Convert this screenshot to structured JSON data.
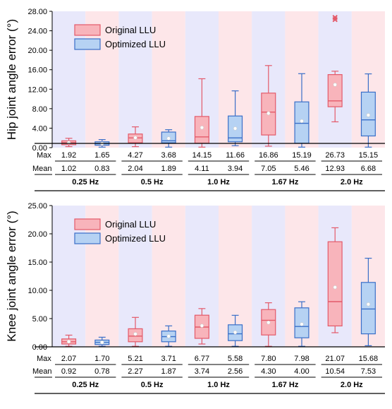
{
  "chart_data": [
    {
      "type": "box",
      "ylabel": "Hip joint angle error (°)",
      "ylim": [
        0,
        28
      ],
      "yticks": [
        "0.00",
        "4.00",
        "8.00",
        "12.00",
        "16.00",
        "20.00",
        "24.00",
        "28.00"
      ],
      "legend": {
        "position": "top-left",
        "entries": [
          "Original LLU",
          "Optimized LLU"
        ]
      },
      "frequencies": [
        "0.25 Hz",
        "0.5 Hz",
        "1.0 Hz",
        "1.67 Hz",
        "2.0 Hz"
      ],
      "table": {
        "row_labels": [
          "Max",
          "Mean"
        ],
        "max": [
          "1.92",
          "1.65",
          "4.27",
          "3.68",
          "14.15",
          "11.66",
          "16.86",
          "15.19",
          "26.73",
          "15.15"
        ],
        "mean": [
          "1.02",
          "0.83",
          "2.04",
          "1.89",
          "4.11",
          "3.94",
          "7.05",
          "5.46",
          "12.93",
          "6.68"
        ]
      },
      "series": [
        {
          "name": "Original LLU",
          "color": "#e35a6a",
          "fill": "#f8b4bb",
          "boxes": [
            {
              "min": 0.2,
              "q1": 0.6,
              "median": 1.0,
              "q3": 1.4,
              "max": 1.92,
              "mean": 1.02
            },
            {
              "min": 0.2,
              "q1": 1.0,
              "median": 2.0,
              "q3": 2.8,
              "max": 4.27,
              "mean": 2.04
            },
            {
              "min": 0.1,
              "q1": 0.9,
              "median": 2.2,
              "q3": 6.4,
              "max": 14.15,
              "mean": 4.11
            },
            {
              "min": 0.3,
              "q1": 2.6,
              "median": 7.3,
              "q3": 11.2,
              "max": 16.86,
              "mean": 7.05
            },
            {
              "min": 5.3,
              "q1": 8.4,
              "median": 9.6,
              "q3": 15.0,
              "max": 15.7,
              "mean": 12.93,
              "outliers": [
                26.3,
                26.73
              ]
            }
          ]
        },
        {
          "name": "Optimized LLU",
          "color": "#3a6fc8",
          "fill": "#b6d2f3",
          "boxes": [
            {
              "min": 0.1,
              "q1": 0.5,
              "median": 0.8,
              "q3": 1.2,
              "max": 1.65,
              "mean": 0.83
            },
            {
              "min": 0.1,
              "q1": 1.0,
              "median": 1.4,
              "q3": 3.2,
              "max": 3.68,
              "mean": 1.89
            },
            {
              "min": 0.4,
              "q1": 1.2,
              "median": 2.0,
              "q3": 6.5,
              "max": 11.66,
              "mean": 3.94
            },
            {
              "min": 0.1,
              "q1": 0.9,
              "median": 5.0,
              "q3": 9.4,
              "max": 15.19,
              "mean": 5.46
            },
            {
              "min": 0.1,
              "q1": 2.4,
              "median": 5.7,
              "q3": 11.4,
              "max": 15.15,
              "mean": 6.68
            }
          ]
        }
      ]
    },
    {
      "type": "box",
      "ylabel": "Knee joint angle error (°)",
      "ylim": [
        0,
        25
      ],
      "yticks": [
        "0.00",
        "5.00",
        "10.00",
        "15.00",
        "20.00",
        "25.00"
      ],
      "legend": {
        "position": "top-left",
        "entries": [
          "Original LLU",
          "Optimized LLU"
        ]
      },
      "frequencies": [
        "0.25 Hz",
        "0.5 Hz",
        "1.0 Hz",
        "1.67 Hz",
        "2.0 Hz"
      ],
      "table": {
        "row_labels": [
          "Max",
          "Mean"
        ],
        "max": [
          "2.07",
          "1.70",
          "5.21",
          "3.71",
          "6.77",
          "5.58",
          "7.80",
          "7.98",
          "21.07",
          "15.68"
        ],
        "mean": [
          "0.92",
          "0.78",
          "2.27",
          "1.87",
          "3.74",
          "2.56",
          "4.30",
          "4.00",
          "10.54",
          "7.53"
        ]
      },
      "series": [
        {
          "name": "Original LLU",
          "color": "#e35a6a",
          "fill": "#f8b4bb",
          "boxes": [
            {
              "min": 0.1,
              "q1": 0.5,
              "median": 0.9,
              "q3": 1.4,
              "max": 2.07,
              "mean": 0.92
            },
            {
              "min": 0.1,
              "q1": 0.9,
              "median": 1.9,
              "q3": 3.2,
              "max": 5.21,
              "mean": 2.27
            },
            {
              "min": 0.5,
              "q1": 1.5,
              "median": 3.5,
              "q3": 5.6,
              "max": 6.77,
              "mean": 3.74
            },
            {
              "min": 0.1,
              "q1": 2.1,
              "median": 4.7,
              "q3": 6.6,
              "max": 7.8,
              "mean": 4.3
            },
            {
              "min": 2.5,
              "q1": 3.7,
              "median": 8.0,
              "q3": 18.6,
              "max": 21.07,
              "mean": 10.54
            }
          ]
        },
        {
          "name": "Optimized LLU",
          "color": "#3a6fc8",
          "fill": "#b6d2f3",
          "boxes": [
            {
              "min": 0.1,
              "q1": 0.4,
              "median": 0.8,
              "q3": 1.2,
              "max": 1.7,
              "mean": 0.78
            },
            {
              "min": 0.1,
              "q1": 0.9,
              "median": 1.8,
              "q3": 2.8,
              "max": 3.71,
              "mean": 1.87
            },
            {
              "min": 0.1,
              "q1": 1.1,
              "median": 2.3,
              "q3": 3.9,
              "max": 5.58,
              "mean": 2.56
            },
            {
              "min": 0.1,
              "q1": 1.6,
              "median": 3.6,
              "q3": 6.9,
              "max": 7.98,
              "mean": 4.0
            },
            {
              "min": 0.2,
              "q1": 2.3,
              "median": 6.7,
              "q3": 11.4,
              "max": 15.68,
              "mean": 7.53
            }
          ]
        }
      ]
    }
  ]
}
